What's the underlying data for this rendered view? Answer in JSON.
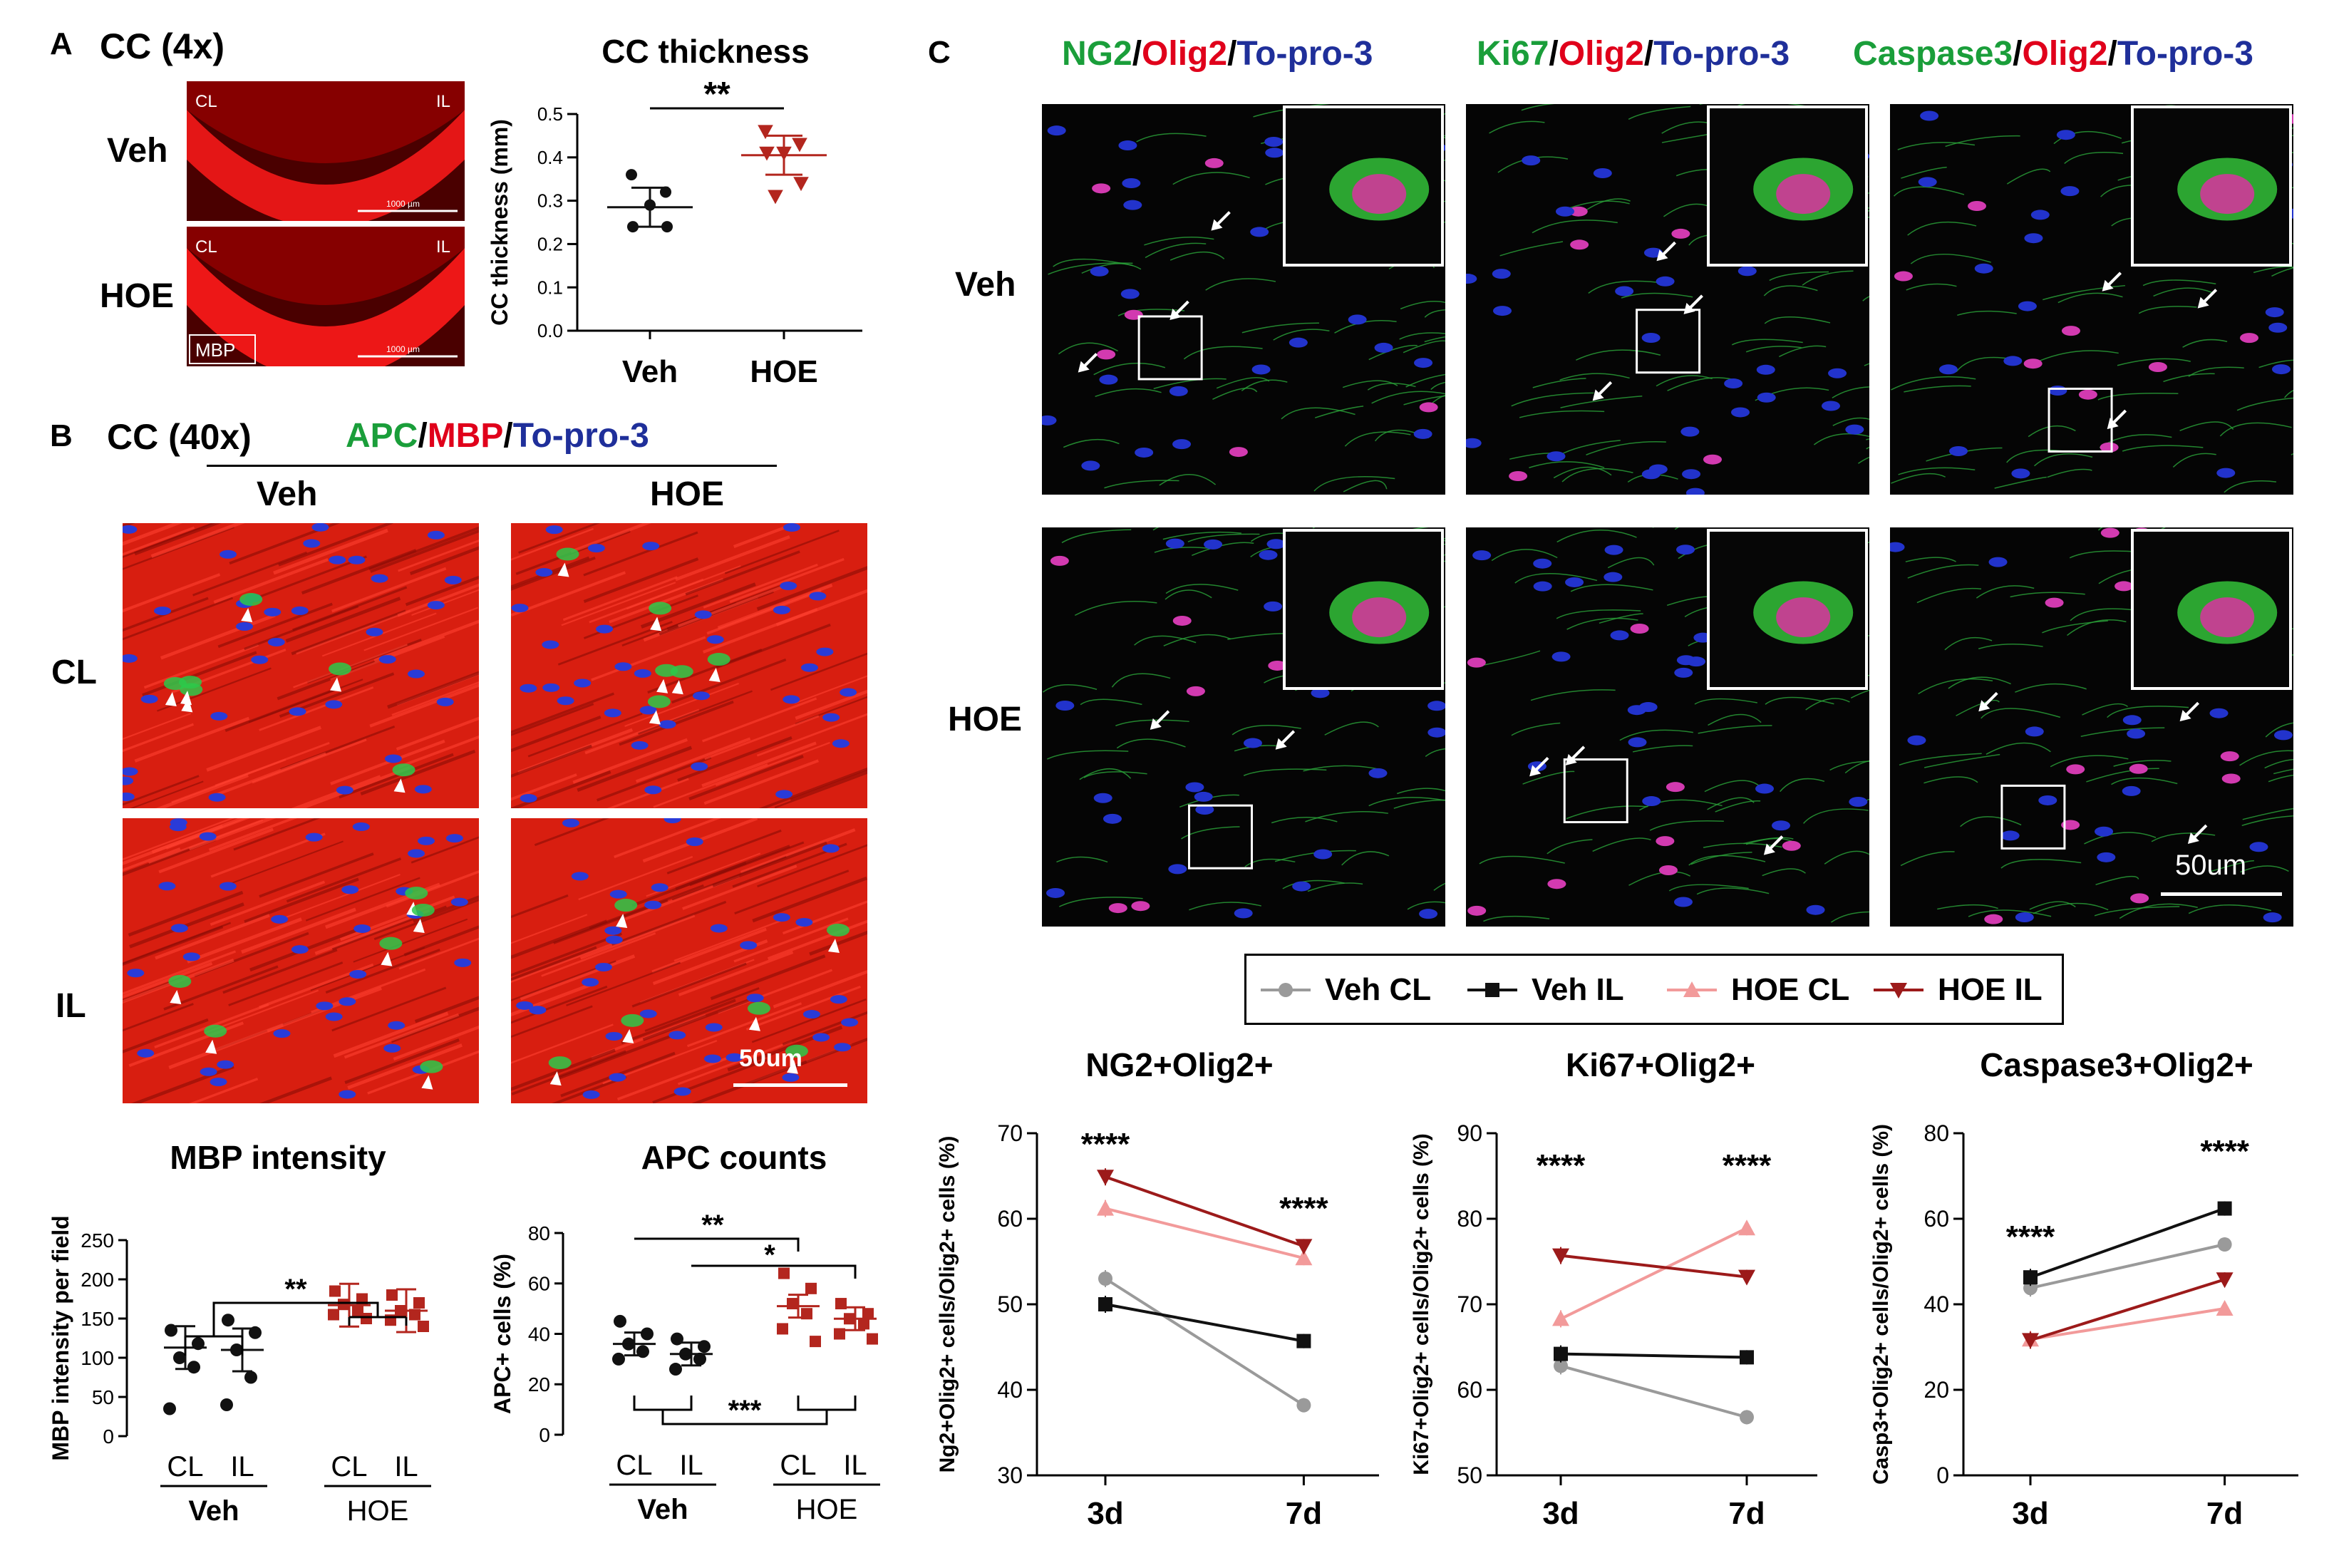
{
  "colors": {
    "veh_cl": "#9a9a9a",
    "veh_il": "#111111",
    "hoe_cl": "#f29a9a",
    "hoe_il": "#9c1a1a",
    "hoe_dot": "#b3261e",
    "marker_green": "#1a9e3a",
    "marker_red": "#e0001b",
    "marker_blue": "#1f2f9a"
  },
  "panel_a": {
    "letter": "A",
    "title": "CC (4x)",
    "row_veh": "Veh",
    "row_hoe": "HOE",
    "img_cl": "CL",
    "img_il": "IL",
    "stain_label": "MBP",
    "scale_text": "1000 µm",
    "chart_title": "CC thickness",
    "sig": "**"
  },
  "panel_b": {
    "letter": "B",
    "title": "CC (40x)",
    "stain": [
      "APC",
      "/",
      "MBP",
      "/",
      "To-pro-3"
    ],
    "col_veh": "Veh",
    "col_hoe": "HOE",
    "row_cl": "CL",
    "row_il": "IL",
    "scale_text": "50um",
    "mbp_title": "MBP intensity",
    "apc_title": "APC counts",
    "sig_mbp": "**",
    "sig_apc_1": "**",
    "sig_apc_2": "*",
    "sig_apc_3": "***"
  },
  "panel_c": {
    "letter": "C",
    "col1_stain": [
      "NG2",
      "/",
      "Olig2",
      "/",
      "To-pro-3"
    ],
    "col2_stain": [
      "Ki67",
      "/",
      "Olig2",
      "/",
      "To-pro-3"
    ],
    "col3_stain": [
      "Caspase3",
      "/",
      "Olig2",
      "/",
      "To-pro-3"
    ],
    "row_veh": "Veh",
    "row_hoe": "HOE",
    "scale_text": "50um",
    "legend": [
      "Veh CL",
      "Veh IL",
      "HOE CL",
      "HOE IL"
    ]
  },
  "chart_data": [
    {
      "type": "scatter",
      "title": "CC thickness",
      "xlabel": "",
      "ylabel": "CC thickness (mm)",
      "categories": [
        "Veh",
        "HOE"
      ],
      "ylim": [
        0,
        0.5
      ],
      "yticks": [
        "0.0",
        "0.1",
        "0.2",
        "0.3",
        "0.4",
        "0.5"
      ],
      "points": [
        [
          0.36,
          0.32,
          0.29,
          0.24,
          0.24
        ],
        [
          0.46,
          0.43,
          0.41,
          0.41,
          0.34,
          0.31
        ]
      ],
      "means": [
        0.285,
        0.405
      ],
      "annotations": [
        "**"
      ]
    },
    {
      "type": "scatter",
      "title": "MBP intensity",
      "ylabel": "MBP intensity per field",
      "categories": [
        "CL",
        "IL",
        "CL",
        "IL"
      ],
      "groups": [
        "Veh",
        "HOE"
      ],
      "ylim": [
        0,
        250
      ],
      "yticks": [
        "0",
        "50",
        "100",
        "150",
        "200",
        "250"
      ],
      "points": [
        [
          135,
          118,
          100,
          88,
          35
        ],
        [
          148,
          132,
          110,
          75,
          40
        ],
        [
          185,
          175,
          168,
          160,
          155,
          150
        ],
        [
          180,
          170,
          160,
          155,
          148,
          140
        ]
      ],
      "means": [
        113,
        110,
        167,
        160
      ],
      "annotations": [
        "**"
      ]
    },
    {
      "type": "scatter",
      "title": "APC counts",
      "ylabel": "APC+ cells (%)",
      "categories": [
        "CL",
        "IL",
        "CL",
        "IL"
      ],
      "groups": [
        "Veh",
        "HOE"
      ],
      "ylim": [
        0,
        80
      ],
      "yticks": [
        "0",
        "20",
        "40",
        "60",
        "80"
      ],
      "points": [
        [
          45,
          40,
          36,
          33,
          30
        ],
        [
          38,
          35,
          32,
          30,
          26
        ],
        [
          64,
          58,
          52,
          48,
          42,
          37
        ],
        [
          52,
          48,
          46,
          44,
          40,
          38
        ]
      ],
      "means": [
        36,
        32,
        51,
        46
      ],
      "annotations": [
        "**",
        "*",
        "***"
      ]
    },
    {
      "type": "line",
      "title": "NG2+Olig2+",
      "ylabel": "Ng2+Olig2+ cells/Olig2+ cells (%)",
      "x": [
        "3d",
        "7d"
      ],
      "ylim": [
        30,
        70
      ],
      "yticks": [
        "30",
        "40",
        "50",
        "60",
        "70"
      ],
      "series": [
        {
          "name": "Veh CL",
          "values": [
            53,
            38.2
          ]
        },
        {
          "name": "Veh IL",
          "values": [
            50,
            45.7
          ]
        },
        {
          "name": "HOE CL",
          "values": [
            61.2,
            55.4
          ]
        },
        {
          "name": "HOE IL",
          "values": [
            64.9,
            56.8
          ]
        }
      ],
      "annotations": [
        "****",
        "****"
      ]
    },
    {
      "type": "line",
      "title": "Ki67+Olig2+",
      "ylabel": "Ki67+Olig2+ cells/Olig2+ cells (%)",
      "x": [
        "3d",
        "7d"
      ],
      "ylim": [
        50,
        90
      ],
      "yticks": [
        "50",
        "60",
        "70",
        "80",
        "90"
      ],
      "series": [
        {
          "name": "Veh CL",
          "values": [
            62.8,
            56.8
          ]
        },
        {
          "name": "Veh IL",
          "values": [
            64.2,
            63.8
          ]
        },
        {
          "name": "HOE CL",
          "values": [
            68.3,
            78.9
          ]
        },
        {
          "name": "HOE IL",
          "values": [
            75.7,
            73.2
          ]
        }
      ],
      "annotations": [
        "****",
        "****"
      ]
    },
    {
      "type": "line",
      "title": "Caspase3+Olig2+",
      "ylabel": "Casp3+Olig2+ cells/Olig2+ cells (%)",
      "x": [
        "3d",
        "7d"
      ],
      "ylim": [
        0,
        80
      ],
      "yticks": [
        "0",
        "20",
        "40",
        "60",
        "80"
      ],
      "series": [
        {
          "name": "Veh CL",
          "values": [
            43.8,
            54
          ]
        },
        {
          "name": "Veh IL",
          "values": [
            46.3,
            62.4
          ]
        },
        {
          "name": "HOE CL",
          "values": [
            31.8,
            39
          ]
        },
        {
          "name": "HOE IL",
          "values": [
            31.6,
            45.8
          ]
        }
      ],
      "annotations": [
        "****",
        "****"
      ]
    }
  ]
}
